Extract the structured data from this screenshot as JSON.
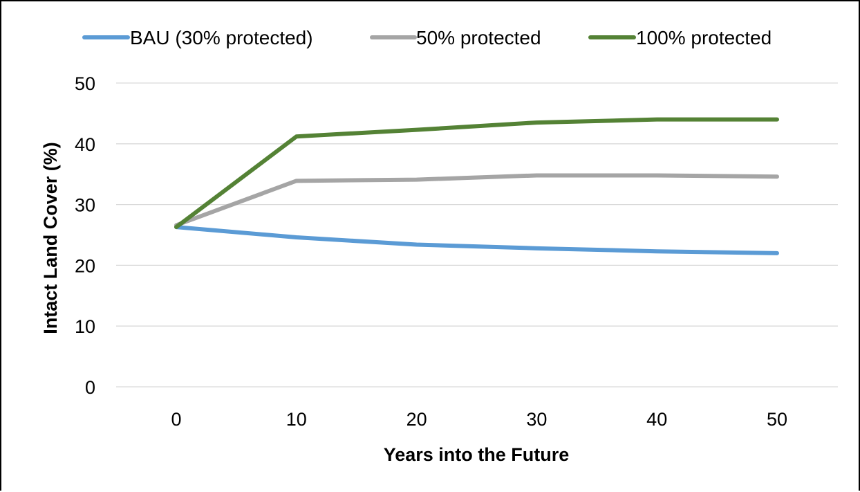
{
  "chart_data": {
    "type": "line",
    "title": "",
    "xlabel": "Years into the Future",
    "ylabel": "Intact Land Cover (%)",
    "x": [
      0,
      10,
      20,
      30,
      40,
      50
    ],
    "x_tick_labels": [
      "0",
      "10",
      "20",
      "30",
      "40",
      "50"
    ],
    "y_tick_labels": [
      "0",
      "10",
      "20",
      "30",
      "40",
      "50"
    ],
    "ylim": [
      0,
      50
    ],
    "grid": true,
    "legend_position": "top",
    "series": [
      {
        "name": "BAU (30% protected)",
        "color": "#5B9BD5",
        "values": [
          26.3,
          24.6,
          23.4,
          22.8,
          22.3,
          22.0
        ]
      },
      {
        "name": "50% protected",
        "color": "#A5A5A5",
        "values": [
          26.6,
          33.9,
          34.1,
          34.8,
          34.8,
          34.6
        ]
      },
      {
        "name": "100% protected",
        "color": "#548235",
        "values": [
          26.3,
          41.2,
          42.3,
          43.5,
          44.0,
          44.0
        ]
      }
    ]
  }
}
